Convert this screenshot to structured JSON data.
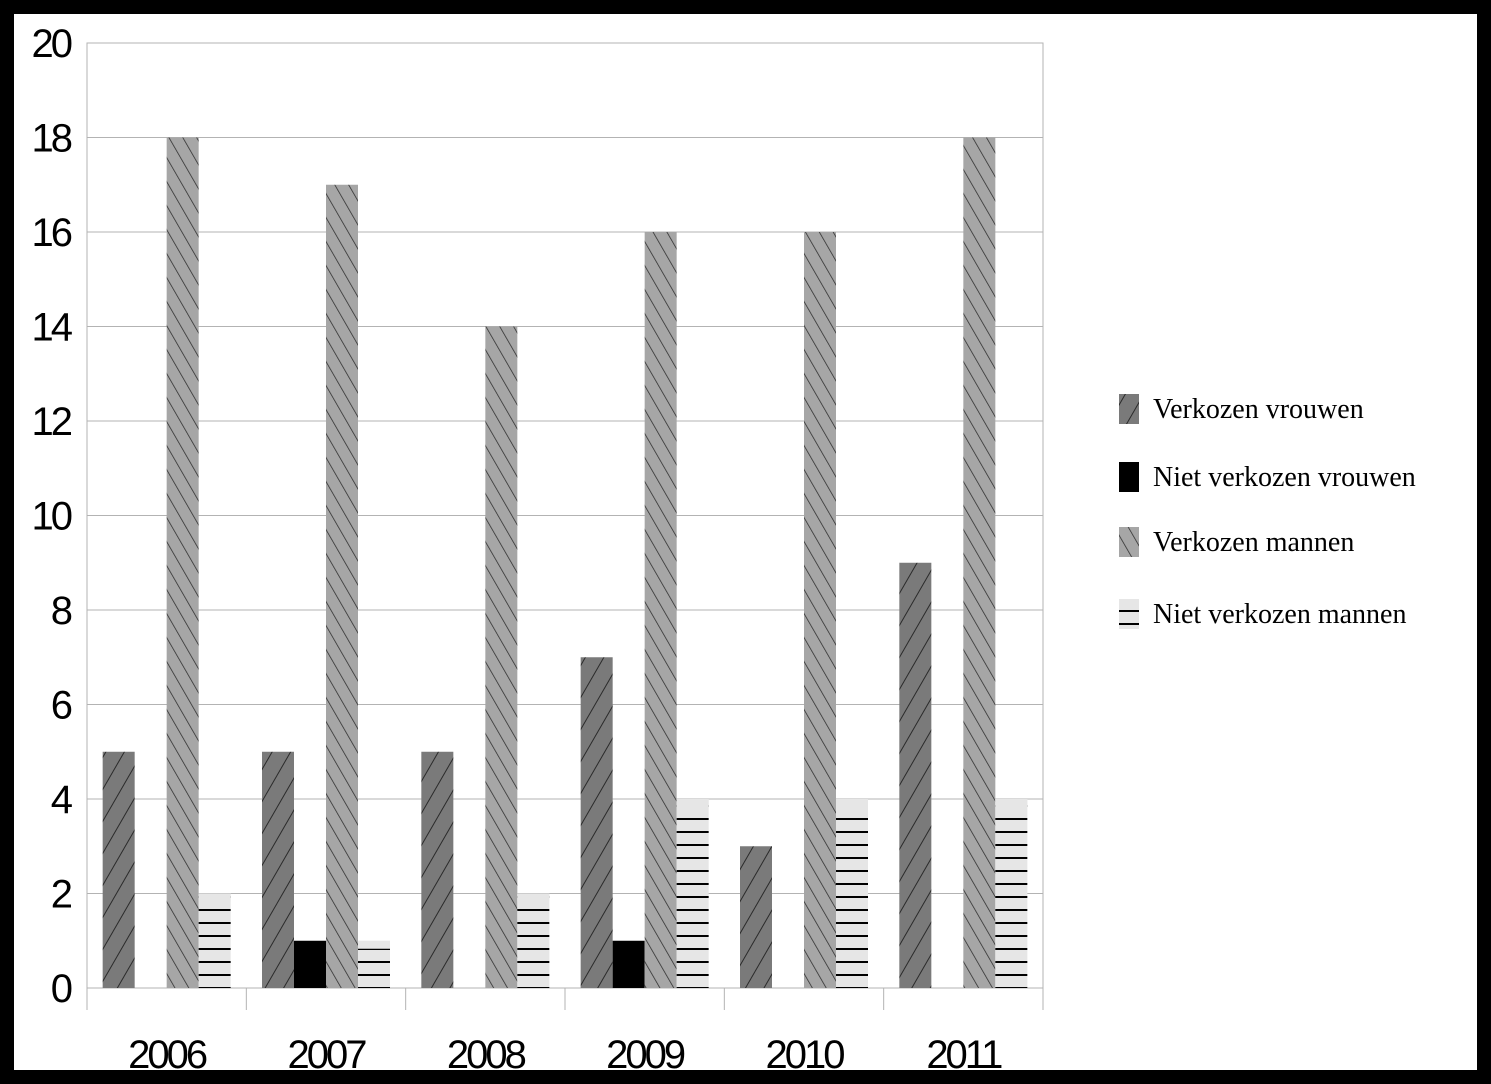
{
  "chart_data": {
    "type": "bar",
    "title": "",
    "xlabel": "",
    "ylabel": "",
    "categories": [
      "2006",
      "2007",
      "2008",
      "2009",
      "2010",
      "2011"
    ],
    "ylim": [
      0,
      20
    ],
    "yticks": [
      "0",
      "2",
      "4",
      "6",
      "8",
      "10",
      "12",
      "14",
      "16",
      "18",
      "20"
    ],
    "grid": true,
    "legend_position": "right",
    "series": [
      {
        "name": "Verkozen vrouwen",
        "values": [
          5,
          5,
          5,
          7,
          3,
          9
        ],
        "color": "#7a7a7a",
        "pattern": "hatch-forward"
      },
      {
        "name": "Niet verkozen vrouwen",
        "values": [
          0,
          1,
          0,
          1,
          0,
          0
        ],
        "color": "#000000",
        "pattern": "solid"
      },
      {
        "name": "Verkozen mannen",
        "values": [
          18,
          17,
          14,
          16,
          16,
          18
        ],
        "color": "#a6a6a6",
        "pattern": "hatch-back"
      },
      {
        "name": "Niet verkozen mannen",
        "values": [
          2,
          1,
          2,
          4,
          4,
          4
        ],
        "color": "#e6e6e6",
        "pattern": "horizontal"
      }
    ]
  }
}
